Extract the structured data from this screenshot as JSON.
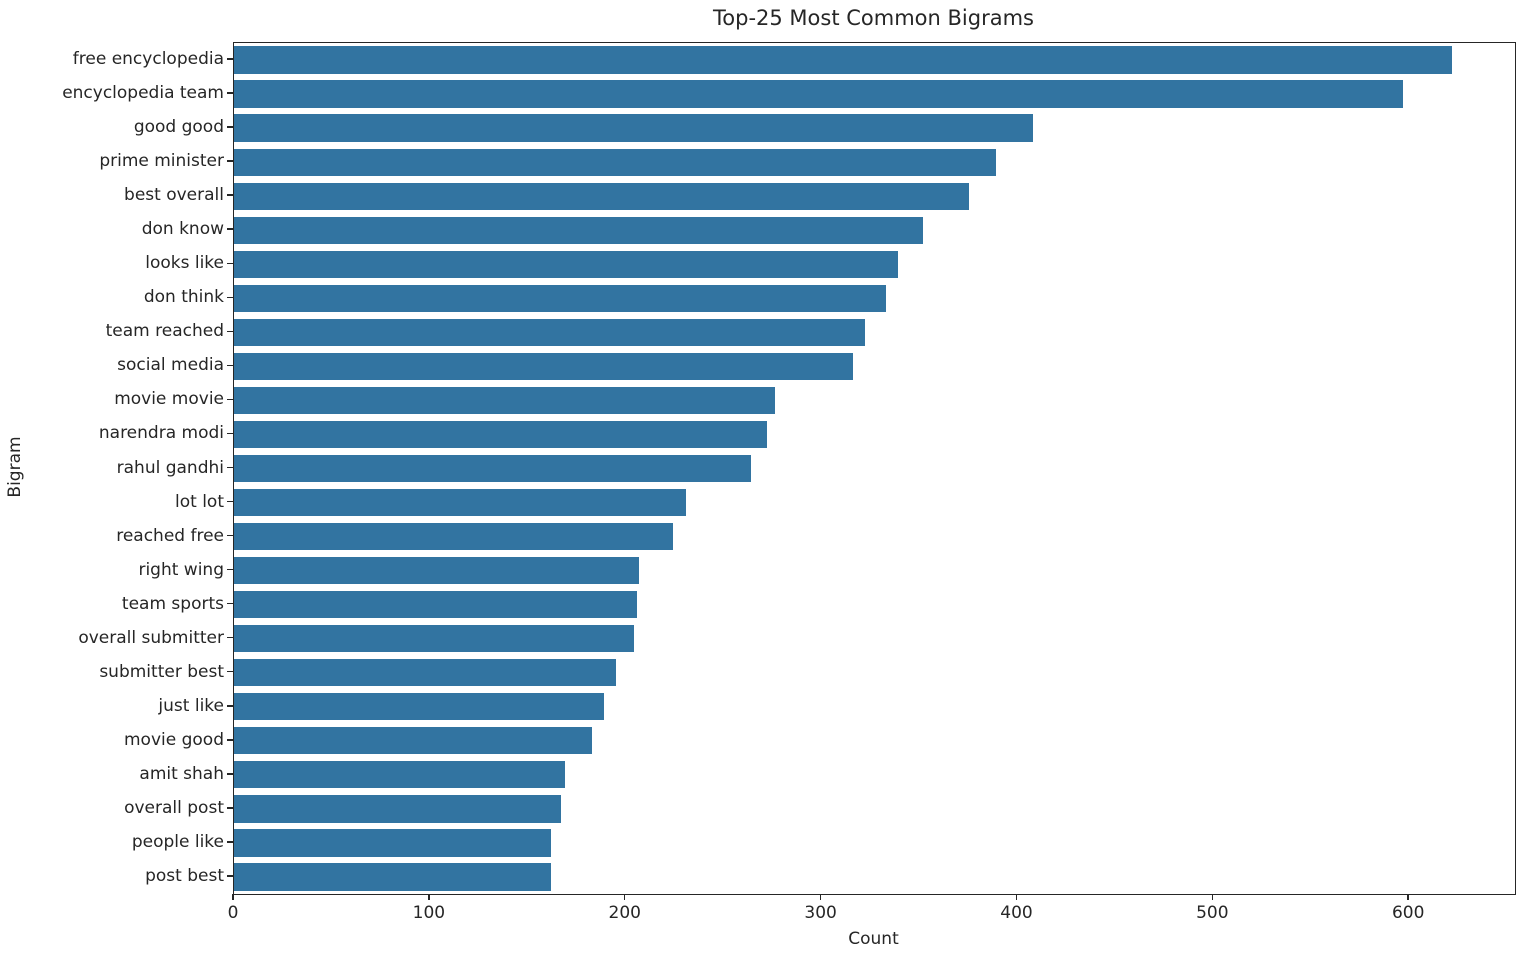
{
  "chart_data": {
    "type": "bar",
    "orientation": "horizontal",
    "title": "Top-25 Most Common Bigrams",
    "xlabel": "Count",
    "ylabel": "Bigram",
    "xlim": [
      0,
      654
    ],
    "x_ticks": [
      0,
      100,
      200,
      300,
      400,
      500,
      600
    ],
    "grid": false,
    "legend": null,
    "bar_color": "#3274a1",
    "axis_color": "#262626",
    "background_color": "#ffffff",
    "categories": [
      "free encyclopedia",
      "encyclopedia team",
      "good good",
      "prime minister",
      "best overall",
      "don know",
      "looks like",
      "don think",
      "team reached",
      "social media",
      "movie movie",
      "narendra modi",
      "rahul gandhi",
      "lot lot",
      "reached free",
      "right wing",
      "team sports",
      "overall submitter",
      "submitter best",
      "just like",
      "movie good",
      "amit shah",
      "overall post",
      "people like",
      "post best"
    ],
    "values": [
      622,
      597,
      408,
      389,
      375,
      352,
      339,
      333,
      322,
      316,
      276,
      272,
      264,
      231,
      224,
      207,
      206,
      204,
      195,
      189,
      183,
      169,
      167,
      162,
      162
    ]
  }
}
